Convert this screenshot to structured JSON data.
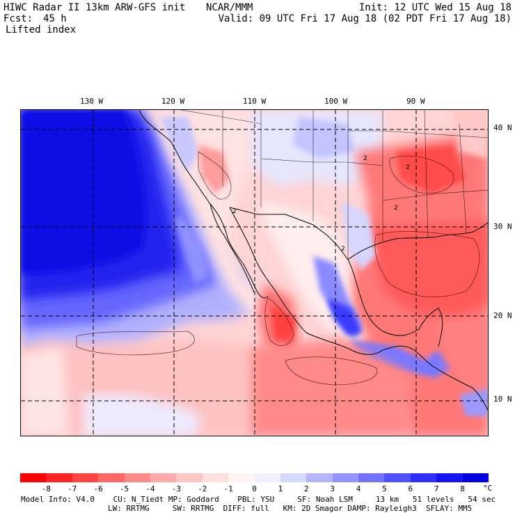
{
  "header": {
    "title": "HIWC Radar II 13km ARW-GFS init",
    "org": "NCAR/MMM",
    "fcst_label": "Fcst:",
    "fcst_value": "45 h",
    "init": "Init: 12 UTC Wed 15 Aug 18",
    "valid": "Valid: 09 UTC Fri 17 Aug 18 (02 PDT Fri 17 Aug 18)",
    "field": "Lifted index"
  },
  "map": {
    "lon_labels": [
      "130 W",
      "120 W",
      "110 W",
      "100 W",
      "90 W"
    ],
    "lat_labels": [
      "40 N",
      "30 N",
      "20 N",
      "10 N"
    ],
    "contour_labels": [
      "2",
      "2",
      "2",
      "2",
      "2"
    ]
  },
  "legend": {
    "unit": "°C",
    "ticks": [
      "-8",
      "-7",
      "-6",
      "-5",
      "-4",
      "-3",
      "-2",
      "-1",
      "0",
      "1",
      "2",
      "3",
      "4",
      "5",
      "6",
      "7",
      "8"
    ],
    "colors": [
      "#ff0000",
      "#ff2222",
      "#ff4444",
      "#ff6666",
      "#ff8888",
      "#ffaaaa",
      "#ffc6c6",
      "#ffe0e0",
      "#fff4f4",
      "#f0f0ff",
      "#d6d6ff",
      "#b4b4ff",
      "#9494ff",
      "#7272ff",
      "#5050ff",
      "#2e2eff",
      "#1414f5",
      "#0000e0"
    ]
  },
  "footer": {
    "line1": "Model Info: V4.0    CU: N_Tiedt MP: Goddard    PBL: YSU     SF: Noah LSM     13 km   51 levels   54 sec",
    "line2": "LW: RRTMG     SW: RRTMG  DIFF: full   KM: 2D Smagor DAMP: Rayleigh3  SFLAY: MM5"
  }
}
